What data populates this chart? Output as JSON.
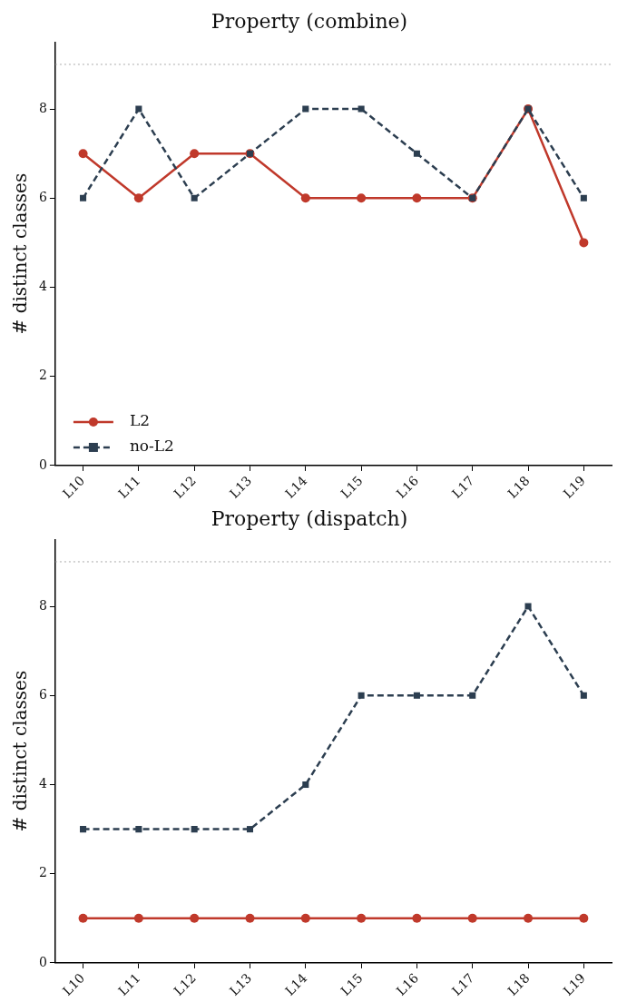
{
  "chart_data": [
    {
      "type": "line",
      "title": "Property (combine)",
      "ylabel": "# distinct classes",
      "categories": [
        "L10",
        "L11",
        "L12",
        "L13",
        "L14",
        "L15",
        "L16",
        "L17",
        "L18",
        "L19"
      ],
      "series": [
        {
          "name": "L2",
          "color": "#c0392b",
          "marker": "circle",
          "line_style": "solid",
          "values": [
            7,
            6,
            7,
            7,
            6,
            6,
            6,
            6,
            8,
            5
          ]
        },
        {
          "name": "no-L2",
          "color": "#2c3e50",
          "marker": "square",
          "line_style": "dashed",
          "values": [
            6,
            8,
            6,
            7,
            8,
            8,
            7,
            6,
            8,
            6
          ]
        }
      ],
      "ylim": [
        0,
        9.5
      ],
      "yticks": [
        0,
        2,
        4,
        6,
        8
      ],
      "ref_lines": [
        {
          "axis": "y",
          "value": 9,
          "color": "#aaaaaa",
          "line_style": "dotted"
        }
      ],
      "grid": false,
      "legend": "bottom left"
    },
    {
      "type": "line",
      "title": "Property (dispatch)",
      "ylabel": "# distinct classes",
      "categories": [
        "L10",
        "L11",
        "L12",
        "L13",
        "L14",
        "L15",
        "L16",
        "L17",
        "L18",
        "L19"
      ],
      "series": [
        {
          "color": "#c0392b",
          "marker": "circle",
          "line_style": "solid",
          "values": [
            1,
            1,
            1,
            1,
            1,
            1,
            1,
            1,
            1,
            1
          ]
        },
        {
          "color": "#2c3e50",
          "marker": "square",
          "line_style": "dashed",
          "values": [
            3,
            3,
            3,
            3,
            4,
            6,
            6,
            6,
            8,
            6
          ]
        }
      ],
      "ylim": [
        0,
        9.5
      ],
      "yticks": [
        0,
        2,
        4,
        6,
        8
      ],
      "ref_lines": [
        {
          "axis": "y",
          "value": 9,
          "color": "#aaaaaa",
          "line_style": "dotted"
        }
      ],
      "grid": false,
      "legend": false
    }
  ]
}
